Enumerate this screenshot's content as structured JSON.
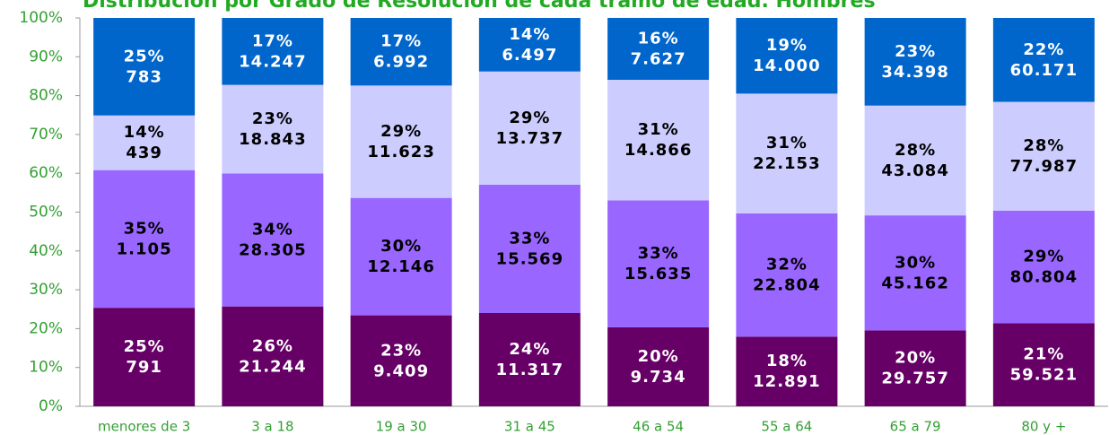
{
  "chart_data": {
    "type": "bar",
    "stacked": true,
    "title": "Distribución por Grado de Resolución de cada tramo de edad. Hombres",
    "categories": [
      "menores de 3",
      "3 a 18",
      "19 a 30",
      "31 a 45",
      "46 a 54",
      "55 a 64",
      "65 a 79",
      "80 y +"
    ],
    "series": [
      {
        "color": "#660066",
        "label_color": "#ffffff",
        "values": [
          25.37,
          25.71,
          23.42,
          24.02,
          20.34,
          17.94,
          19.53,
          21.37
        ],
        "value_labels": [
          "25%",
          "26%",
          "23%",
          "24%",
          "20%",
          "18%",
          "20%",
          "21%"
        ],
        "count_labels": [
          "791",
          "21.244",
          "9.409",
          "11.317",
          "9.734",
          "12.891",
          "29.757",
          "59.521"
        ]
      },
      {
        "color": "#9966ff",
        "label_color": "#000000",
        "values": [
          35.44,
          34.25,
          30.24,
          33.04,
          32.67,
          31.74,
          29.63,
          29.02
        ],
        "value_labels": [
          "35%",
          "34%",
          "30%",
          "33%",
          "33%",
          "32%",
          "30%",
          "29%"
        ],
        "count_labels": [
          "1.105",
          "28.305",
          "12.146",
          "15.569",
          "15.635",
          "22.804",
          "45.162",
          "80.804"
        ]
      },
      {
        "color": "#ccccff",
        "label_color": "#000000",
        "values": [
          14.08,
          22.8,
          28.93,
          29.15,
          31.06,
          30.83,
          28.27,
          28.0
        ],
        "value_labels": [
          "14%",
          "23%",
          "29%",
          "29%",
          "31%",
          "31%",
          "28%",
          "28%"
        ],
        "count_labels": [
          "439",
          "18.843",
          "11.623",
          "13.737",
          "14.866",
          "22.153",
          "43.084",
          "77.987"
        ]
      },
      {
        "color": "#0066cc",
        "label_color": "#ffffff",
        "values": [
          25.11,
          17.24,
          17.41,
          13.79,
          15.94,
          19.49,
          22.57,
          21.61
        ],
        "value_labels": [
          "25%",
          "17%",
          "17%",
          "14%",
          "16%",
          "19%",
          "23%",
          "22%"
        ],
        "count_labels": [
          "783",
          "14.247",
          "6.992",
          "6.497",
          "7.627",
          "14.000",
          "34.398",
          "60.171"
        ]
      }
    ],
    "ylim": [
      0,
      100
    ],
    "yticks": [
      {
        "value": 0,
        "label": "0%"
      },
      {
        "value": 10,
        "label": "10%"
      },
      {
        "value": 20,
        "label": "20%"
      },
      {
        "value": 30,
        "label": "30%"
      },
      {
        "value": 40,
        "label": "40%"
      },
      {
        "value": 50,
        "label": "50%"
      },
      {
        "value": 60,
        "label": "60%"
      },
      {
        "value": 70,
        "label": "70%"
      },
      {
        "value": 80,
        "label": "80%"
      },
      {
        "value": 90,
        "label": "90%"
      },
      {
        "value": 100,
        "label": "100%"
      }
    ],
    "grid": false
  }
}
